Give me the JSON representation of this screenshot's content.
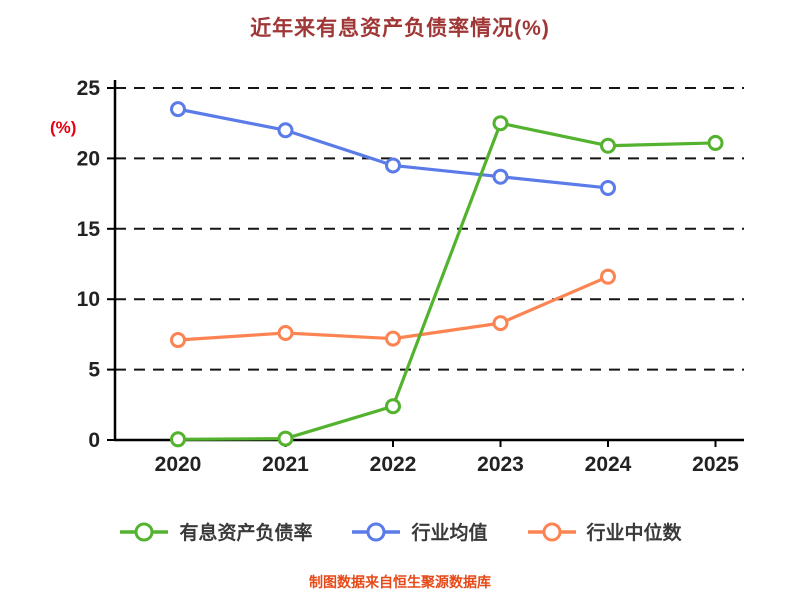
{
  "y_axis_unit_label": "(%)",
  "footer": "制图数据来自恒生聚源数据库",
  "colors": {
    "title": "#a03737",
    "axis": "#000000",
    "gridline": "#151515",
    "tick_text": "#222222",
    "unit_label": "#e60012",
    "footer_text": "#e64a19"
  },
  "chart_data": {
    "type": "line",
    "title": "近年来有息资产负债率情况(%)",
    "categories": [
      "2020",
      "2021",
      "2022",
      "2023",
      "2024",
      "2025"
    ],
    "series": [
      {
        "name": "有息资产负债率",
        "color": "#54b32e",
        "values": [
          0.05,
          0.1,
          2.4,
          22.5,
          20.9,
          21.1
        ]
      },
      {
        "name": "行业均值",
        "color": "#5b7be9",
        "values": [
          23.5,
          22.0,
          19.5,
          18.7,
          17.9,
          null
        ]
      },
      {
        "name": "行业中位数",
        "color": "#fc8452",
        "values": [
          7.1,
          7.6,
          7.2,
          8.3,
          11.6,
          null
        ]
      }
    ],
    "xlabel": "",
    "ylabel": "(%)",
    "ylim": [
      0,
      25
    ],
    "yticks": [
      0,
      5,
      10,
      15,
      20,
      25
    ],
    "grid": "dashed-horizontal",
    "legend_position": "bottom",
    "marker": "open-circle"
  }
}
